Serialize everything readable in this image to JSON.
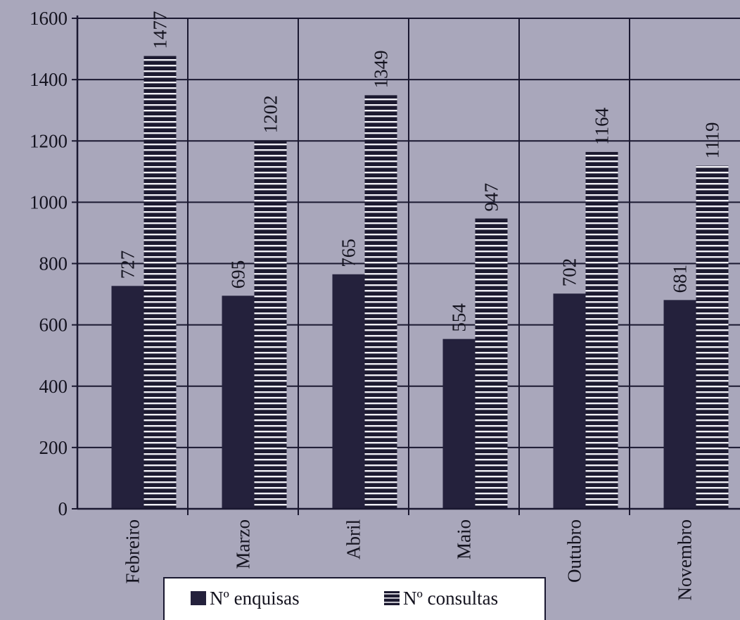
{
  "chart_data": {
    "type": "bar",
    "categories": [
      "Febreiro",
      "Marzo",
      "Abril",
      "Maio",
      "Outubro",
      "Novembro"
    ],
    "series": [
      {
        "name": "Nº enquisas",
        "values": [
          727,
          695,
          765,
          554,
          702,
          681
        ],
        "pattern": "solid",
        "color": "#24213c"
      },
      {
        "name": "Nº consultas",
        "values": [
          1477,
          1202,
          1349,
          947,
          1164,
          1119
        ],
        "pattern": "horizontal-stripes",
        "color": "#1c1a30"
      }
    ],
    "data_labels": {
      "Nº enquisas": [
        "727",
        "695",
        "765",
        "554",
        "702",
        "681"
      ],
      "Nº consultas": [
        "1477",
        "1202",
        "1349",
        "947",
        "1164",
        "1119"
      ]
    },
    "yticks": [
      "0",
      "200",
      "400",
      "600",
      "800",
      "1000",
      "1200",
      "1400",
      "1600"
    ],
    "ylim": [
      0,
      1600
    ],
    "grid": true,
    "legend_position": "bottom-center",
    "title": "",
    "xlabel": "",
    "ylabel": ""
  },
  "colors": {
    "background": "#a9a7bb",
    "axis": "#1a1830",
    "grid": "#1a1830"
  }
}
